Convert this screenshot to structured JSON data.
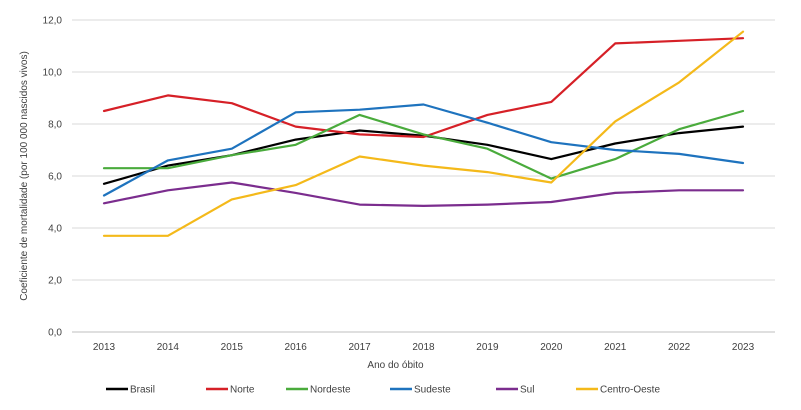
{
  "chart_data": {
    "type": "line",
    "xlabel": "Ano do óbito",
    "ylabel": "Coeficiente de mortalidade  (por 100 000 nascidos vivos)",
    "x": [
      2013,
      2014,
      2015,
      2016,
      2017,
      2018,
      2019,
      2020,
      2021,
      2022,
      2023
    ],
    "ylim": [
      0,
      12
    ],
    "yticks": [
      "0,0",
      "2,0",
      "4,0",
      "6,0",
      "8,0",
      "10,0",
      "12,0"
    ],
    "grid": true,
    "legend_position": "bottom",
    "series": [
      {
        "name": "Brasil",
        "color": "#000000",
        "values": [
          5.7,
          6.4,
          6.8,
          7.4,
          7.75,
          7.55,
          7.2,
          6.65,
          7.25,
          7.65,
          7.9
        ]
      },
      {
        "name": "Norte",
        "color": "#d62027",
        "values": [
          8.5,
          9.1,
          8.8,
          7.9,
          7.6,
          7.5,
          8.35,
          8.85,
          11.1,
          11.2,
          11.3
        ]
      },
      {
        "name": "Nordeste",
        "color": "#4aab3c",
        "values": [
          6.3,
          6.3,
          6.8,
          7.2,
          8.35,
          7.6,
          7.05,
          5.9,
          6.65,
          7.8,
          8.5
        ]
      },
      {
        "name": "Sudeste",
        "color": "#1e73be",
        "values": [
          5.25,
          6.6,
          7.05,
          8.45,
          8.55,
          8.75,
          8.05,
          7.3,
          7.0,
          6.85,
          6.5
        ]
      },
      {
        "name": "Sul",
        "color": "#7b2d8e",
        "values": [
          4.95,
          5.45,
          5.75,
          5.35,
          4.9,
          4.85,
          4.9,
          5.0,
          5.35,
          5.45,
          5.45
        ]
      },
      {
        "name": "Centro-Oeste",
        "color": "#f4b91a",
        "values": [
          3.7,
          3.7,
          5.1,
          5.65,
          6.75,
          6.4,
          6.15,
          5.75,
          8.1,
          9.6,
          11.55
        ]
      }
    ]
  }
}
